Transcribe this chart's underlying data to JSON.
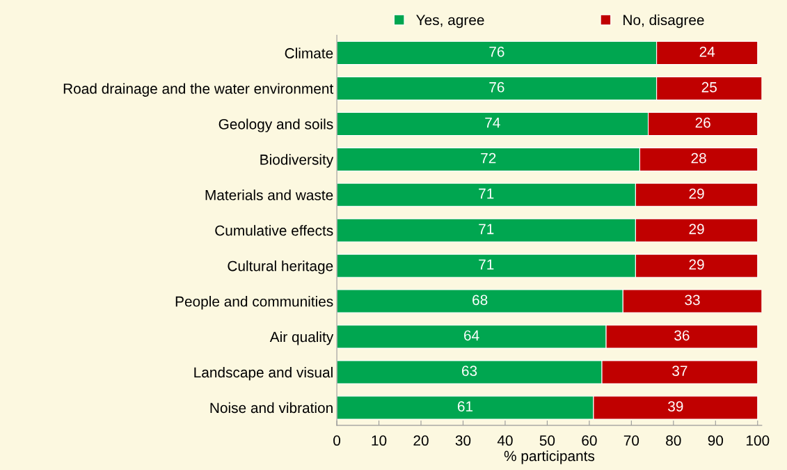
{
  "chart_data": {
    "type": "bar",
    "orientation": "horizontal",
    "stacked": true,
    "categories": [
      "Climate",
      "Road drainage and the water environment",
      "Geology and soils",
      "Biodiversity",
      "Materials and waste",
      "Cumulative effects",
      "Cultural heritage",
      "People and communities",
      "Air quality",
      "Landscape and visual",
      "Noise and vibration"
    ],
    "series": [
      {
        "name": "Yes, agree",
        "color": "#00a650",
        "values": [
          76,
          76,
          74,
          72,
          71,
          71,
          71,
          68,
          64,
          63,
          61
        ]
      },
      {
        "name": "No, disagree",
        "color": "#c00000",
        "values": [
          24,
          25,
          26,
          28,
          29,
          29,
          29,
          33,
          36,
          37,
          39
        ]
      }
    ],
    "xlabel": "% participants",
    "xlim": [
      0,
      101
    ],
    "xticks": [
      0,
      10,
      20,
      30,
      40,
      50,
      60,
      70,
      80,
      90,
      100
    ],
    "data_labels": true,
    "legend": "top",
    "grid": false
  }
}
